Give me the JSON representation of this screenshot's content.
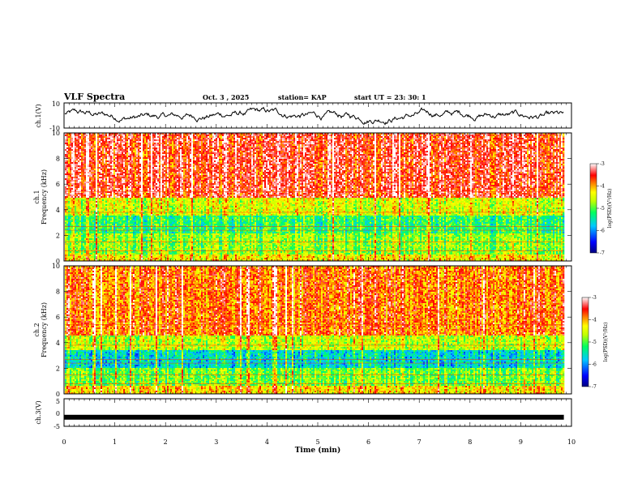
{
  "header": {
    "title": "VLF Spectra",
    "date": "Oct. 3 , 2025",
    "station": "station= KAP",
    "start": "start UT = 23: 30: 1"
  },
  "chart_data": [
    {
      "type": "line",
      "name": "ch1-waveform",
      "ylabel": "ch.1(V)",
      "ylim": [
        -10,
        10
      ],
      "yticks": [
        "10",
        "-10"
      ],
      "xlim": [
        0,
        10
      ],
      "description_values": {
        "mean": 0,
        "amplitude": 4
      }
    },
    {
      "type": "heatmap",
      "name": "ch1-spectrogram",
      "ylabel": "ch.1\nFrequency (kHz)",
      "ylabel_lines": [
        "ch.1",
        "Frequency (kHz)"
      ],
      "ylim": [
        0,
        10
      ],
      "yticks": [
        "0",
        "2",
        "4",
        "6",
        "8",
        "10"
      ],
      "xlim": [
        0,
        9.85
      ],
      "bands_khz": [
        {
          "from": 0,
          "to": 0.5,
          "level": -4.3
        },
        {
          "from": 0.5,
          "to": 2.2,
          "level": -4.8
        },
        {
          "from": 2.2,
          "to": 3.6,
          "level": -5.2
        },
        {
          "from": 3.6,
          "to": 5.0,
          "level": -4.5
        },
        {
          "from": 5.0,
          "to": 10,
          "level": -3.5
        }
      ],
      "colorbar": {
        "label": "log(PSD)(V²/Hz)",
        "range": [
          -7,
          -3
        ],
        "ticks": [
          "-3",
          "-4",
          "-5",
          "-6",
          "-7"
        ]
      }
    },
    {
      "type": "heatmap",
      "name": "ch2-spectrogram",
      "ylabel": "ch.2\nFrequency (kHz)",
      "ylabel_lines": [
        "ch.2",
        "Frequency (kHz)"
      ],
      "ylim": [
        0,
        10
      ],
      "yticks": [
        "0",
        "2",
        "4",
        "6",
        "8",
        "10"
      ],
      "xlim": [
        0,
        9.85
      ],
      "bands_khz": [
        {
          "from": 0,
          "to": 0.6,
          "level": -4.2
        },
        {
          "from": 0.6,
          "to": 2.0,
          "level": -4.9
        },
        {
          "from": 2.0,
          "to": 3.4,
          "level": -5.6
        },
        {
          "from": 3.4,
          "to": 4.5,
          "level": -4.6
        },
        {
          "from": 4.5,
          "to": 10,
          "level": -3.8
        }
      ],
      "colorbar": {
        "label": "log(PSD)(V²/Hz)",
        "range": [
          -7,
          -3
        ],
        "ticks": [
          "-3",
          "-4",
          "-5",
          "-6",
          "-7"
        ]
      }
    },
    {
      "type": "line",
      "name": "ch3-waveform",
      "ylabel": "ch.3(V)",
      "ylim": [
        -5,
        5
      ],
      "yticks": [
        "5",
        "0",
        "-5"
      ],
      "xlim": [
        0,
        10
      ],
      "level": -1.7
    }
  ],
  "xaxis": {
    "label": "Time (min)",
    "ticks": [
      "0",
      "1",
      "2",
      "3",
      "4",
      "5",
      "6",
      "7",
      "8",
      "9",
      "10"
    ],
    "range": [
      0,
      10
    ]
  },
  "colors": {
    "trace": "#000000",
    "colormap": [
      "#000080",
      "#0000ff",
      "#00bfff",
      "#00ff80",
      "#b0ff00",
      "#ffff00",
      "#ff8000",
      "#ff0000",
      "#ffffff"
    ]
  }
}
